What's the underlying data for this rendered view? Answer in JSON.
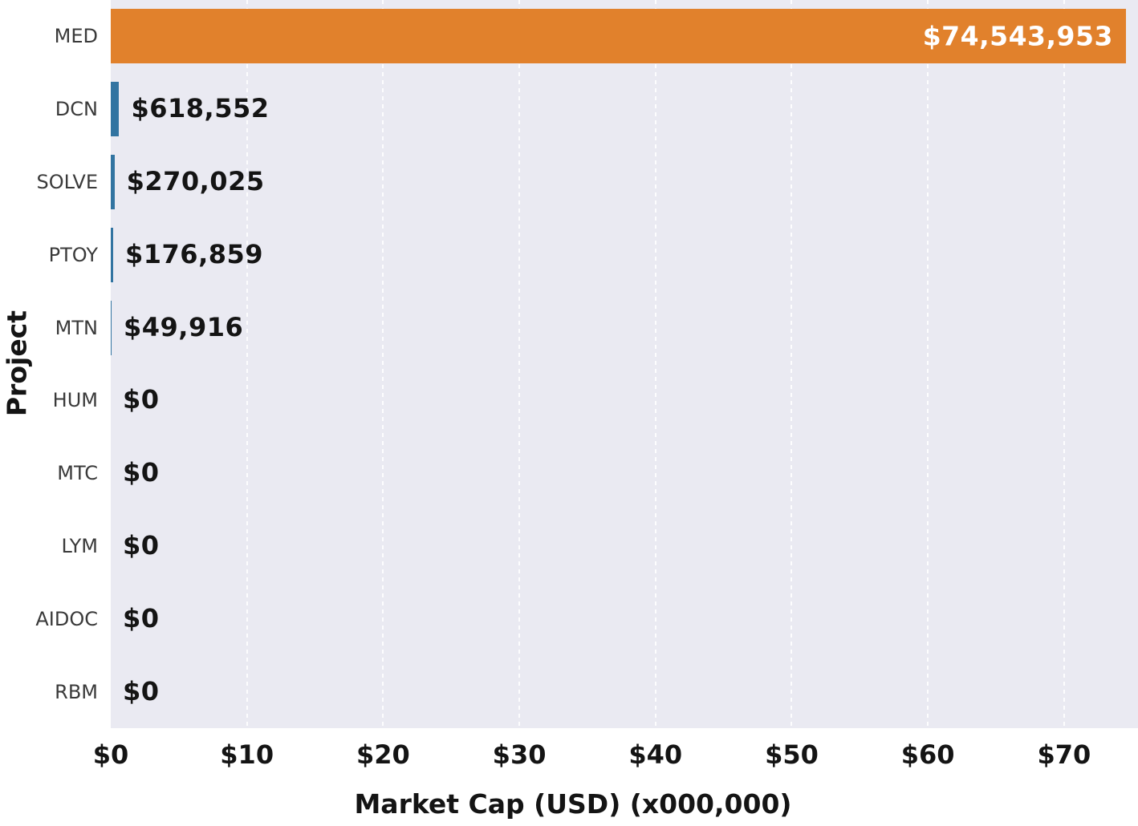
{
  "chart_data": {
    "type": "bar",
    "orientation": "horizontal",
    "title": "",
    "xlabel": "Market Cap (USD) (x000,000)",
    "ylabel": "Project",
    "categories": [
      "MED",
      "DCN",
      "SOLVE",
      "PTOY",
      "MTN",
      "HUM",
      "MTC",
      "LYM",
      "AIDOC",
      "RBM"
    ],
    "values_usd": [
      74543953,
      618552,
      270025,
      176859,
      49916,
      0,
      0,
      0,
      0,
      0
    ],
    "value_labels": [
      "$74,543,953",
      "$618,552",
      "$270,025",
      "$176,859",
      "$49,916",
      "$0",
      "$0",
      "$0",
      "$0",
      "$0"
    ],
    "x_ticks": [
      "$0",
      "$10",
      "$20",
      "$30",
      "$40",
      "$50",
      "$60",
      "$70"
    ],
    "x_tick_values_millions": [
      0,
      10,
      20,
      30,
      40,
      50,
      60,
      70
    ],
    "xlim_millions": [
      0,
      75.43
    ],
    "grid": "vertical white dashed lines at each x tick, on",
    "legend": "none",
    "colors": {
      "highlight_bar": "#e1812c",
      "default_bar": "#3274a1",
      "plot_background": "#eaeaf2",
      "figure_background": "#ffffff",
      "gridline": "#ffffff",
      "inside_label_text": "#ffffff",
      "outside_label_text": "#141414"
    },
    "highlighted_category": "MED"
  }
}
